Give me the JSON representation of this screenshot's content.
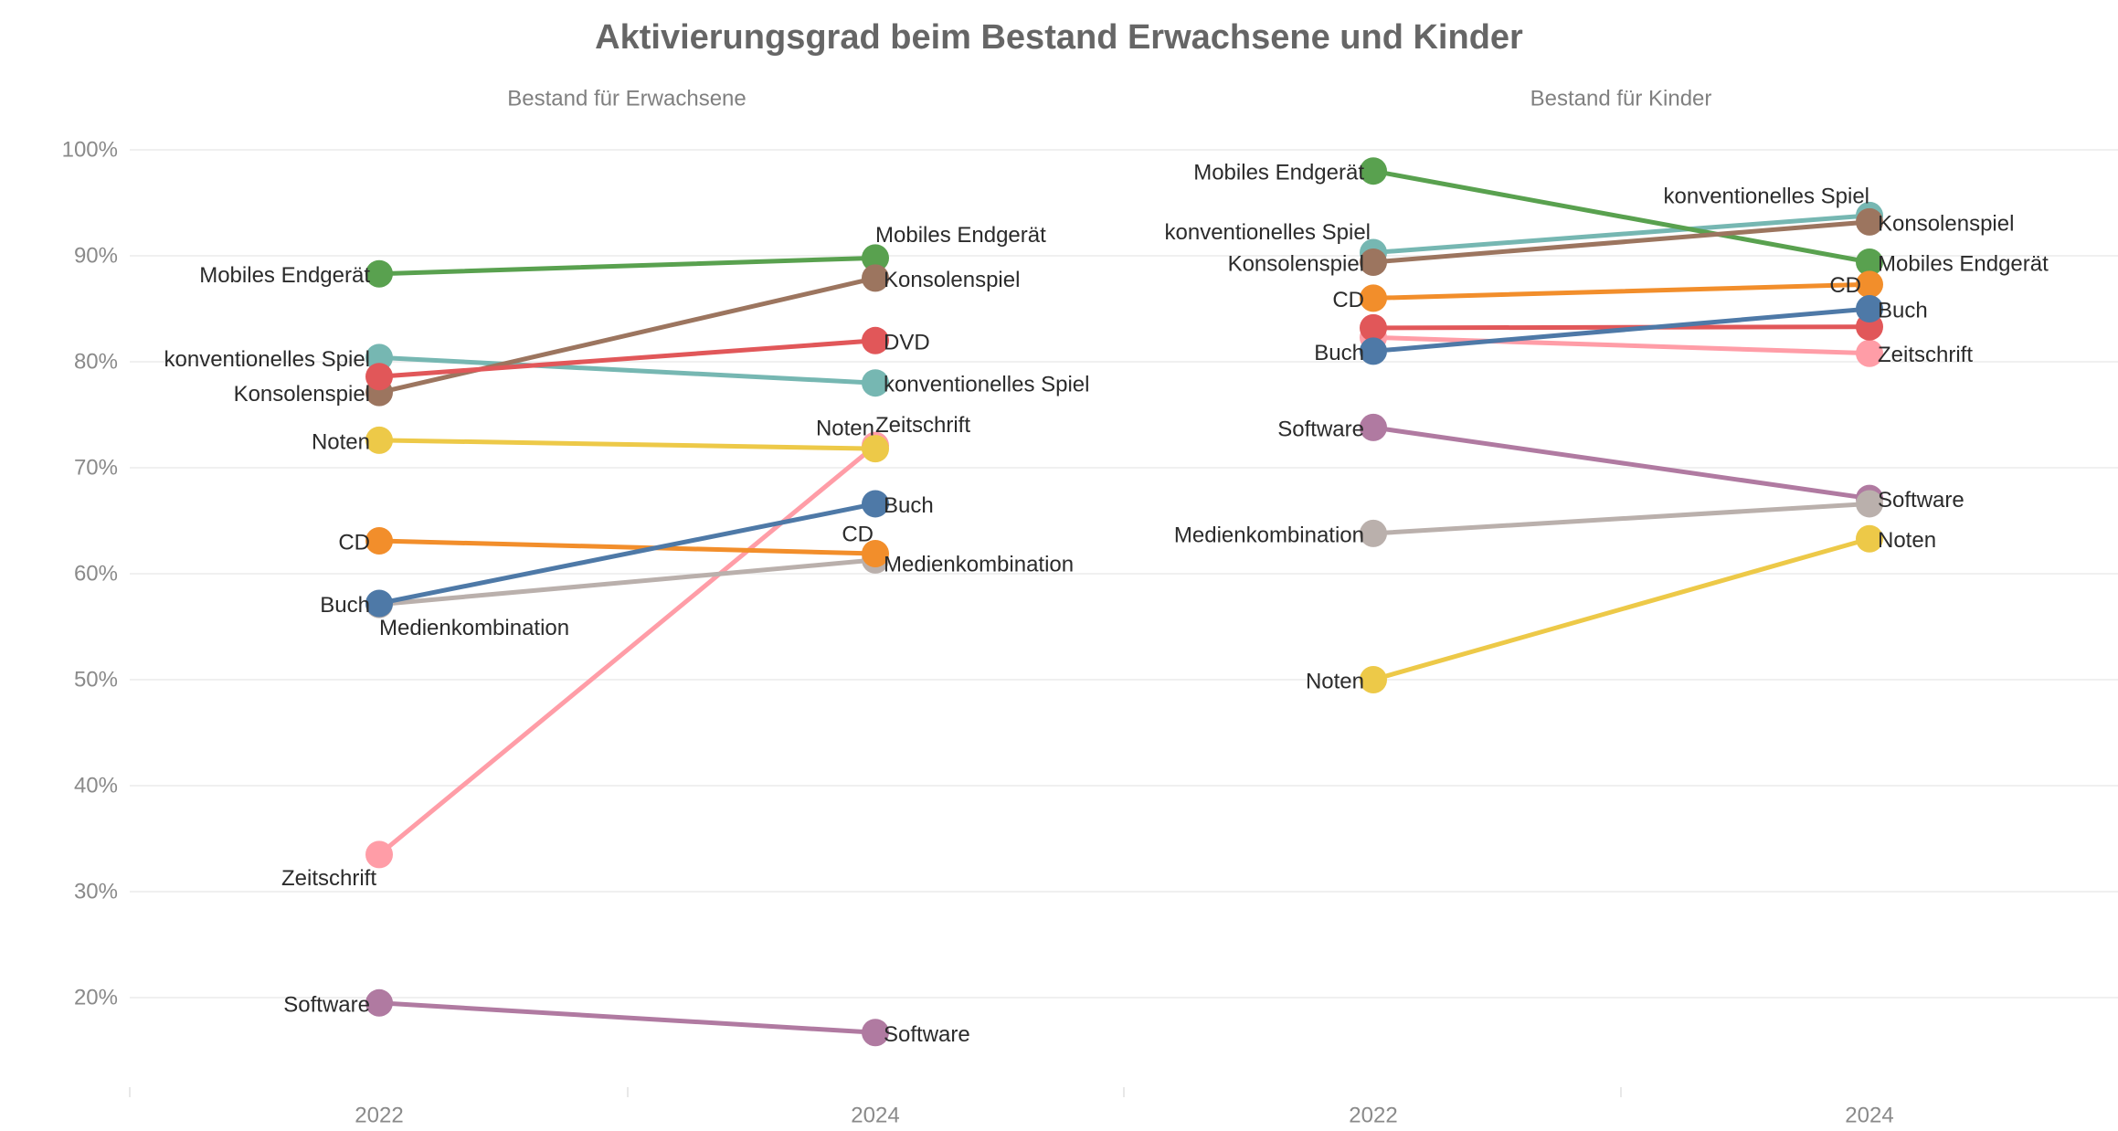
{
  "chart_data": {
    "type": "line",
    "title": "Aktivierungsgrad beim Bestand Erwachsene und Kinder",
    "x": [
      "2022",
      "2024"
    ],
    "ylim": [
      11,
      102
    ],
    "y_ticks": [
      100,
      90,
      80,
      70,
      60,
      50,
      40,
      30,
      20
    ],
    "y_tick_labels": [
      "100%",
      "90%",
      "80%",
      "70%",
      "60%",
      "50%",
      "40%",
      "30%",
      "20%"
    ],
    "grid": true,
    "series": [
      {
        "name": "Buch",
        "color": "#4e79a7"
      },
      {
        "name": "CD",
        "color": "#f28e2b"
      },
      {
        "name": "DVD",
        "color": "#e15759"
      },
      {
        "name": "Konsolenspiel",
        "color": "#9c755f"
      },
      {
        "name": "Medienkombination",
        "color": "#bab0ac"
      },
      {
        "name": "Mobiles Endgerät",
        "color": "#59a14f"
      },
      {
        "name": "Noten",
        "color": "#edc948"
      },
      {
        "name": "Software",
        "color": "#b07aa1"
      },
      {
        "name": "Zeitschrift",
        "color": "#ff9da7"
      },
      {
        "name": "konventionelles Spiel",
        "color": "#76b7b2"
      }
    ],
    "panels": [
      {
        "name": "Bestand für Erwachsene",
        "data": {
          "Buch": {
            "values": [
              57.2,
              66.6
            ],
            "labeled": [
              true,
              true
            ]
          },
          "CD": {
            "values": [
              63.1,
              61.9
            ],
            "labeled": [
              true,
              true
            ]
          },
          "DVD": {
            "values": [
              78.6,
              82.0
            ],
            "labeled": [
              false,
              true
            ]
          },
          "Konsolenspiel": {
            "values": [
              77.1,
              87.9
            ],
            "labeled": [
              true,
              true
            ]
          },
          "Medienkombination": {
            "values": [
              57.1,
              61.3
            ],
            "labeled": [
              true,
              true
            ]
          },
          "Mobiles Endgerät": {
            "values": [
              88.3,
              89.8
            ],
            "labeled": [
              true,
              true
            ]
          },
          "Noten": {
            "values": [
              72.6,
              71.8
            ],
            "labeled": [
              true,
              true
            ]
          },
          "Software": {
            "values": [
              19.5,
              16.7
            ],
            "labeled": [
              true,
              true
            ]
          },
          "Zeitschrift": {
            "values": [
              33.5,
              72.1
            ],
            "labeled": [
              true,
              true
            ]
          },
          "konventionelles Spiel": {
            "values": [
              80.4,
              78.0
            ],
            "labeled": [
              true,
              true
            ]
          }
        }
      },
      {
        "name": "Bestand für Kinder",
        "data": {
          "Buch": {
            "values": [
              81.0,
              85.0
            ],
            "labeled": [
              true,
              true
            ]
          },
          "CD": {
            "values": [
              86.0,
              87.3
            ],
            "labeled": [
              true,
              true
            ]
          },
          "DVD": {
            "values": [
              83.2,
              83.3
            ],
            "labeled": [
              false,
              false
            ]
          },
          "Konsolenspiel": {
            "values": [
              89.4,
              93.2
            ],
            "labeled": [
              true,
              true
            ]
          },
          "Medienkombination": {
            "values": [
              63.8,
              66.6
            ],
            "labeled": [
              true,
              false
            ]
          },
          "Mobiles Endgerät": {
            "values": [
              98.0,
              89.4
            ],
            "labeled": [
              true,
              true
            ]
          },
          "Noten": {
            "values": [
              50.0,
              63.3
            ],
            "labeled": [
              true,
              true
            ]
          },
          "Software": {
            "values": [
              73.8,
              67.1
            ],
            "labeled": [
              true,
              true
            ]
          },
          "Zeitschrift": {
            "values": [
              82.3,
              80.8
            ],
            "labeled": [
              false,
              true
            ]
          },
          "konventionelles Spiel": {
            "values": [
              90.3,
              93.8
            ],
            "labeled": [
              true,
              true
            ]
          }
        }
      }
    ]
  }
}
